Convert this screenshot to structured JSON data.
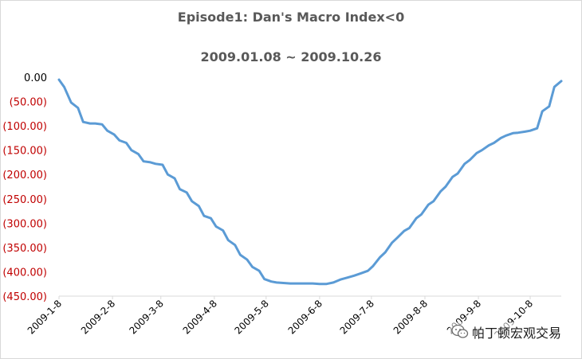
{
  "chart_data": {
    "type": "line",
    "title": "Episode1: Dan's Macro Index<0",
    "subtitle": "2009.01.08 ~ 2009.10.26",
    "xlabel": "",
    "ylabel": "",
    "x_tick_labels": [
      "2009-1-8",
      "2009-2-8",
      "2009-3-8",
      "2009-4-8",
      "2009-5-8",
      "2009-6-8",
      "2009-7-8",
      "2009-8-8",
      "2009-9-8",
      "2009-10-8"
    ],
    "y_tick_labels": [
      "0.00",
      "(50.00)",
      "(100.00)",
      "(150.00)",
      "(200.00)",
      "(250.00)",
      "(300.00)",
      "(350.00)",
      "(400.00)",
      "(450.00)"
    ],
    "ylim": [
      -450,
      0
    ],
    "x_range": [
      "2009-01-08",
      "2009-10-26"
    ],
    "grid": false,
    "legend": "none",
    "colors": {
      "line": "#5b9bd5",
      "positive_label": "#000000",
      "negative_label": "#c00000",
      "title": "#595959"
    },
    "series": [
      {
        "x": [
          "2009-01-08",
          "2009-01-11",
          "2009-01-15",
          "2009-01-19",
          "2009-01-22",
          "2009-01-26",
          "2009-01-29",
          "2009-02-02",
          "2009-02-05",
          "2009-02-09",
          "2009-02-12",
          "2009-02-16",
          "2009-02-19",
          "2009-02-23",
          "2009-02-26",
          "2009-03-02",
          "2009-03-05",
          "2009-03-09",
          "2009-03-12",
          "2009-03-16",
          "2009-03-19",
          "2009-03-23",
          "2009-03-26",
          "2009-03-30",
          "2009-04-02",
          "2009-04-06",
          "2009-04-09",
          "2009-04-13",
          "2009-04-16",
          "2009-04-20",
          "2009-04-23",
          "2009-04-27",
          "2009-04-30",
          "2009-05-04",
          "2009-05-07",
          "2009-05-11",
          "2009-05-14",
          "2009-05-18",
          "2009-05-22",
          "2009-05-28",
          "2009-06-04",
          "2009-06-08",
          "2009-06-12",
          "2009-06-16",
          "2009-06-20",
          "2009-06-24",
          "2009-06-28",
          "2009-07-02",
          "2009-07-06",
          "2009-07-09",
          "2009-07-13",
          "2009-07-16",
          "2009-07-20",
          "2009-07-23",
          "2009-07-27",
          "2009-07-30",
          "2009-08-03",
          "2009-08-06",
          "2009-08-10",
          "2009-08-13",
          "2009-08-17",
          "2009-08-20",
          "2009-08-24",
          "2009-08-27",
          "2009-08-31",
          "2009-09-03",
          "2009-09-07",
          "2009-09-10",
          "2009-09-14",
          "2009-09-17",
          "2009-09-21",
          "2009-09-24",
          "2009-09-28",
          "2009-10-01",
          "2009-10-05",
          "2009-10-08",
          "2009-10-12",
          "2009-10-15",
          "2009-10-19",
          "2009-10-22",
          "2009-10-26"
        ],
        "values": [
          -5,
          -20,
          -52,
          -63,
          -92,
          -95,
          -95,
          -97,
          -110,
          -118,
          -130,
          -135,
          -150,
          -158,
          -173,
          -175,
          -178,
          -180,
          -200,
          -208,
          -230,
          -237,
          -255,
          -265,
          -285,
          -290,
          -307,
          -315,
          -335,
          -345,
          -365,
          -375,
          -390,
          -398,
          -415,
          -420,
          -422,
          -423,
          -424,
          -424,
          -424,
          -425,
          -425,
          -422,
          -416,
          -412,
          -408,
          -403,
          -398,
          -388,
          -370,
          -360,
          -340,
          -330,
          -316,
          -310,
          -290,
          -282,
          -262,
          -255,
          -235,
          -225,
          -205,
          -198,
          -178,
          -170,
          -156,
          -150,
          -140,
          -135,
          -125,
          -120,
          -115,
          -114,
          -112,
          -110,
          -105,
          -70,
          -60,
          -20,
          -8
        ]
      }
    ]
  },
  "watermark": {
    "text": "帕丁顿宏观交易",
    "icon": "wechat-icon"
  }
}
